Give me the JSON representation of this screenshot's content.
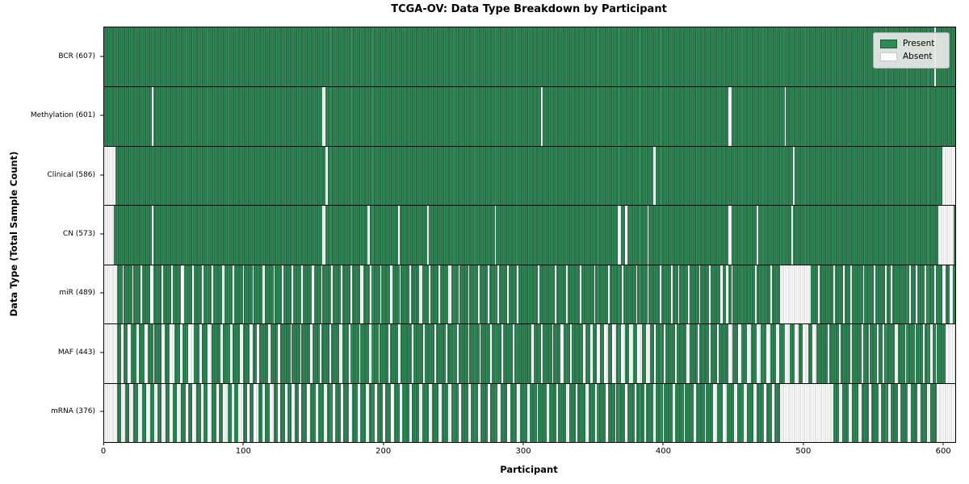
{
  "title": "TCGA-OV: Data Type Breakdown by Participant",
  "xlabel": "Participant",
  "ylabel": "Data Type (Total Sample Count)",
  "legend": {
    "present_label": "Present",
    "absent_label": "Absent"
  },
  "colors": {
    "present": "#2E8B57",
    "present_edge": "#1b5737",
    "absent": "#ffffff",
    "absent_edge": "#c9c9c9",
    "legend_bg": "#e8e8e8"
  },
  "chart_data": {
    "type": "heatmap",
    "title": "TCGA-OV: Data Type Breakdown by Participant",
    "xlabel": "Participant",
    "ylabel": "Data Type (Total Sample Count)",
    "legend_entries": [
      "Present",
      "Absent"
    ],
    "legend_position": "upper right",
    "n_participants": 608,
    "x_domain": [
      0,
      608
    ],
    "x_ticks": [
      0,
      100,
      200,
      300,
      400,
      500,
      600
    ],
    "rows": [
      {
        "name": "BCR",
        "label": "BCR (607)",
        "present_count": 607,
        "absent_ranges": [
          [
            593,
            594
          ]
        ]
      },
      {
        "name": "Methylation",
        "label": "Methylation (601)",
        "present_count": 601,
        "absent_ranges": [
          [
            34,
            35
          ],
          [
            156,
            158
          ],
          [
            312,
            313
          ],
          [
            446,
            448
          ],
          [
            486,
            487
          ]
        ]
      },
      {
        "name": "Clinical",
        "label": "Clinical (586)",
        "present_count": 586,
        "absent_ranges": [
          [
            0,
            8
          ],
          [
            158,
            160
          ],
          [
            392,
            394
          ],
          [
            492,
            493
          ],
          [
            599,
            608
          ]
        ]
      },
      {
        "name": "CN",
        "label": "CN (573)",
        "present_count": 573,
        "absent_ranges": [
          [
            0,
            7
          ],
          [
            34,
            35
          ],
          [
            156,
            158
          ],
          [
            188,
            190
          ],
          [
            210,
            211
          ],
          [
            231,
            232
          ],
          [
            279,
            280
          ],
          [
            367,
            369
          ],
          [
            372,
            374
          ],
          [
            388,
            389
          ],
          [
            446,
            448
          ],
          [
            466,
            467
          ],
          [
            491,
            492
          ],
          [
            596,
            607
          ]
        ]
      },
      {
        "name": "miR",
        "label": "miR (489)",
        "present_count": 489,
        "absent_ranges": [
          [
            0,
            9
          ],
          [
            13,
            14
          ],
          [
            20,
            21
          ],
          [
            26,
            27
          ],
          [
            33,
            35
          ],
          [
            41,
            42
          ],
          [
            48,
            49
          ],
          [
            55,
            57
          ],
          [
            63,
            64
          ],
          [
            70,
            71
          ],
          [
            77,
            78
          ],
          [
            84,
            86
          ],
          [
            92,
            93
          ],
          [
            99,
            100
          ],
          [
            106,
            107
          ],
          [
            113,
            115
          ],
          [
            121,
            122
          ],
          [
            127,
            128
          ],
          [
            134,
            135
          ],
          [
            141,
            142
          ],
          [
            148,
            150
          ],
          [
            155,
            156
          ],
          [
            162,
            163
          ],
          [
            169,
            170
          ],
          [
            176,
            177
          ],
          [
            183,
            185
          ],
          [
            190,
            191
          ],
          [
            197,
            198
          ],
          [
            204,
            206
          ],
          [
            211,
            212
          ],
          [
            218,
            219
          ],
          [
            225,
            227
          ],
          [
            232,
            233
          ],
          [
            239,
            240
          ],
          [
            246,
            248
          ],
          [
            253,
            254
          ],
          [
            260,
            261
          ],
          [
            267,
            268
          ],
          [
            274,
            275
          ],
          [
            281,
            282
          ],
          [
            288,
            289
          ],
          [
            295,
            296
          ],
          [
            310,
            311
          ],
          [
            322,
            323
          ],
          [
            330,
            331
          ],
          [
            340,
            341
          ],
          [
            350,
            351
          ],
          [
            360,
            361
          ],
          [
            370,
            371
          ],
          [
            380,
            381
          ],
          [
            388,
            389
          ],
          [
            397,
            398
          ],
          [
            405,
            406
          ],
          [
            410,
            411
          ],
          [
            417,
            418
          ],
          [
            425,
            426
          ],
          [
            432,
            433
          ],
          [
            440,
            442
          ],
          [
            444,
            446
          ],
          [
            448,
            449
          ],
          [
            465,
            466
          ],
          [
            476,
            477
          ],
          [
            483,
            505
          ],
          [
            510,
            511
          ],
          [
            521,
            522
          ],
          [
            528,
            529
          ],
          [
            533,
            534
          ],
          [
            542,
            543
          ],
          [
            550,
            551
          ],
          [
            558,
            559
          ],
          [
            562,
            563
          ],
          [
            575,
            576
          ],
          [
            580,
            581
          ],
          [
            586,
            587
          ],
          [
            593,
            594
          ],
          [
            599,
            601
          ],
          [
            604,
            606
          ]
        ]
      },
      {
        "name": "MAF",
        "label": "MAF (443)",
        "present_count": 443,
        "absent_ranges": [
          [
            0,
            9
          ],
          [
            12,
            14
          ],
          [
            17,
            19
          ],
          [
            23,
            25
          ],
          [
            29,
            31
          ],
          [
            35,
            36
          ],
          [
            41,
            43
          ],
          [
            47,
            50
          ],
          [
            54,
            56
          ],
          [
            60,
            64
          ],
          [
            68,
            70
          ],
          [
            74,
            77
          ],
          [
            83,
            85
          ],
          [
            90,
            92
          ],
          [
            97,
            99
          ],
          [
            104,
            106
          ],
          [
            109,
            111
          ],
          [
            117,
            119
          ],
          [
            124,
            126
          ],
          [
            133,
            134
          ],
          [
            140,
            141
          ],
          [
            147,
            149
          ],
          [
            154,
            155
          ],
          [
            161,
            162
          ],
          [
            168,
            170
          ],
          [
            175,
            176
          ],
          [
            182,
            183
          ],
          [
            189,
            191
          ],
          [
            196,
            197
          ],
          [
            203,
            204
          ],
          [
            210,
            212
          ],
          [
            220,
            221
          ],
          [
            228,
            229
          ],
          [
            236,
            237
          ],
          [
            244,
            245
          ],
          [
            252,
            253
          ],
          [
            260,
            261
          ],
          [
            268,
            269
          ],
          [
            276,
            277
          ],
          [
            284,
            285
          ],
          [
            292,
            293
          ],
          [
            305,
            307
          ],
          [
            312,
            313
          ],
          [
            320,
            321
          ],
          [
            326,
            328
          ],
          [
            333,
            334
          ],
          [
            342,
            344
          ],
          [
            347,
            349
          ],
          [
            352,
            354
          ],
          [
            357,
            360
          ],
          [
            363,
            366
          ],
          [
            369,
            372
          ],
          [
            375,
            378
          ],
          [
            381,
            384
          ],
          [
            387,
            390
          ],
          [
            393,
            394
          ],
          [
            400,
            401
          ],
          [
            408,
            409
          ],
          [
            416,
            418
          ],
          [
            424,
            425
          ],
          [
            432,
            433
          ],
          [
            438,
            439
          ],
          [
            446,
            449
          ],
          [
            453,
            455
          ],
          [
            459,
            462
          ],
          [
            466,
            469
          ],
          [
            473,
            476
          ],
          [
            480,
            482
          ],
          [
            486,
            490
          ],
          [
            493,
            496
          ],
          [
            499,
            503
          ],
          [
            506,
            509
          ],
          [
            517,
            518
          ],
          [
            525,
            526
          ],
          [
            533,
            534
          ],
          [
            541,
            542
          ],
          [
            546,
            547
          ],
          [
            552,
            553
          ],
          [
            556,
            557
          ],
          [
            565,
            567
          ],
          [
            572,
            573
          ],
          [
            579,
            580
          ],
          [
            585,
            586
          ],
          [
            590,
            592
          ],
          [
            594,
            595
          ],
          [
            601,
            608
          ]
        ]
      },
      {
        "name": "mRNA",
        "label": "mRNA (376)",
        "present_count": 376,
        "absent_ranges": [
          [
            0,
            9
          ],
          [
            12,
            15
          ],
          [
            18,
            21
          ],
          [
            24,
            27
          ],
          [
            30,
            33
          ],
          [
            36,
            38
          ],
          [
            41,
            44
          ],
          [
            47,
            49
          ],
          [
            52,
            55
          ],
          [
            58,
            60
          ],
          [
            63,
            66
          ],
          [
            69,
            71
          ],
          [
            74,
            77
          ],
          [
            80,
            82
          ],
          [
            85,
            88
          ],
          [
            91,
            93
          ],
          [
            96,
            99
          ],
          [
            102,
            104
          ],
          [
            107,
            110
          ],
          [
            113,
            115
          ],
          [
            118,
            121
          ],
          [
            124,
            126
          ],
          [
            129,
            131
          ],
          [
            134,
            136
          ],
          [
            139,
            141
          ],
          [
            145,
            147
          ],
          [
            151,
            153
          ],
          [
            157,
            159
          ],
          [
            163,
            165
          ],
          [
            169,
            171
          ],
          [
            175,
            177
          ],
          [
            181,
            183
          ],
          [
            187,
            189
          ],
          [
            193,
            195
          ],
          [
            199,
            201
          ],
          [
            205,
            207
          ],
          [
            211,
            213
          ],
          [
            218,
            220
          ],
          [
            225,
            227
          ],
          [
            232,
            234
          ],
          [
            239,
            241
          ],
          [
            246,
            248
          ],
          [
            253,
            255
          ],
          [
            260,
            262
          ],
          [
            267,
            269
          ],
          [
            274,
            276
          ],
          [
            281,
            283
          ],
          [
            288,
            290
          ],
          [
            295,
            297
          ],
          [
            302,
            304
          ],
          [
            309,
            310
          ],
          [
            316,
            318
          ],
          [
            323,
            324
          ],
          [
            330,
            332
          ],
          [
            337,
            338
          ],
          [
            344,
            346
          ],
          [
            351,
            352
          ],
          [
            358,
            360
          ],
          [
            365,
            366
          ],
          [
            372,
            374
          ],
          [
            379,
            380
          ],
          [
            386,
            387
          ],
          [
            392,
            394
          ],
          [
            399,
            400
          ],
          [
            406,
            408
          ],
          [
            414,
            415
          ],
          [
            421,
            423
          ],
          [
            429,
            430
          ],
          [
            435,
            438
          ],
          [
            442,
            445
          ],
          [
            450,
            452
          ],
          [
            457,
            459
          ],
          [
            464,
            466
          ],
          [
            471,
            473
          ],
          [
            477,
            479
          ],
          [
            483,
            521
          ],
          [
            525,
            527
          ],
          [
            532,
            534
          ],
          [
            539,
            541
          ],
          [
            546,
            548
          ],
          [
            553,
            555
          ],
          [
            560,
            562
          ],
          [
            567,
            569
          ],
          [
            574,
            576
          ],
          [
            581,
            583
          ],
          [
            588,
            590
          ],
          [
            595,
            608
          ]
        ]
      }
    ]
  }
}
